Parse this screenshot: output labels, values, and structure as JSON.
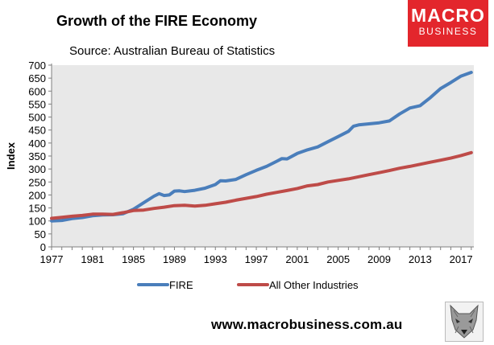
{
  "header": {
    "title": "Growth of the FIRE Economy",
    "subtitle": "Source: Australian Bureau of Statistics"
  },
  "logo": {
    "line1": "MACRO",
    "line2": "BUSINESS"
  },
  "footer": {
    "url": "www.macrobusiness.com.au"
  },
  "chart_data": {
    "type": "line",
    "ylabel": "Index",
    "xlabel": "",
    "ylim": [
      0,
      700
    ],
    "xlim": [
      1977,
      2018.25
    ],
    "yticks": [
      0,
      50,
      100,
      150,
      200,
      250,
      300,
      350,
      400,
      450,
      500,
      550,
      600,
      650,
      700
    ],
    "xticks": [
      1977,
      1981,
      1985,
      1989,
      1993,
      1997,
      2001,
      2005,
      2009,
      2013,
      2017
    ],
    "grid": false,
    "legend": "bottom",
    "colors": {
      "FIRE": "#4a7ebb",
      "All Other Industries": "#be4b48",
      "plot_bg": "#e8e8e8"
    },
    "series": [
      {
        "name": "FIRE",
        "x": [
          1977,
          1978,
          1979,
          1980,
          1981,
          1982,
          1983,
          1984,
          1985,
          1986,
          1987,
          1987.5,
          1988,
          1988.5,
          1989,
          1989.5,
          1990,
          1991,
          1992,
          1993,
          1993.5,
          1994,
          1995,
          1996,
          1997,
          1998,
          1999,
          1999.5,
          2000,
          2001,
          2002,
          2003,
          2004,
          2005,
          2006,
          2006.5,
          2007,
          2008,
          2009,
          2010,
          2011,
          2012,
          2013,
          2014,
          2015,
          2016,
          2017,
          2018
        ],
        "y": [
          100,
          102,
          109,
          113,
          120,
          123,
          124,
          128,
          145,
          170,
          195,
          205,
          198,
          200,
          215,
          216,
          213,
          218,
          226,
          240,
          255,
          254,
          260,
          278,
          295,
          310,
          330,
          340,
          339,
          360,
          374,
          385,
          405,
          425,
          445,
          465,
          470,
          474,
          478,
          485,
          512,
          535,
          544,
          575,
          610,
          633,
          658,
          672
        ]
      },
      {
        "name": "All Other Industries",
        "x": [
          1977,
          1978,
          1979,
          1980,
          1981,
          1982,
          1983,
          1984,
          1985,
          1986,
          1987,
          1988,
          1989,
          1990,
          1991,
          1992,
          1993,
          1994,
          1995,
          1996,
          1997,
          1998,
          1999,
          2000,
          2001,
          2002,
          2003,
          2004,
          2005,
          2006,
          2007,
          2008,
          2009,
          2010,
          2011,
          2012,
          2013,
          2014,
          2015,
          2016,
          2017,
          2018
        ],
        "y": [
          110,
          114,
          118,
          121,
          126,
          126,
          125,
          132,
          140,
          142,
          148,
          153,
          159,
          160,
          157,
          160,
          166,
          172,
          180,
          187,
          194,
          203,
          210,
          217,
          225,
          235,
          240,
          250,
          256,
          262,
          270,
          278,
          286,
          294,
          303,
          310,
          318,
          326,
          334,
          342,
          352,
          363
        ]
      }
    ]
  }
}
